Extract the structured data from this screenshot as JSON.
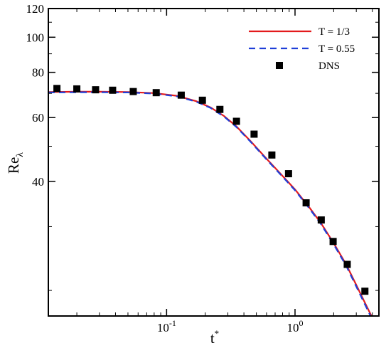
{
  "chart_data": {
    "type": "line",
    "title": "",
    "xlabel": "t",
    "xlabel_superscript": "*",
    "ylabel": "Re",
    "ylabel_subscript": "λ",
    "xscale": "log",
    "yscale": "log",
    "xlim": [
      0.012,
      4.5
    ],
    "ylim": [
      17,
      120
    ],
    "grid": false,
    "legend_position": "top-right",
    "x_ticks": [
      {
        "value": 0.1,
        "base": "10",
        "exp": "-1"
      },
      {
        "value": 1.0,
        "base": "10",
        "exp": "0"
      }
    ],
    "y_ticks": [
      {
        "value": 40,
        "label": "40"
      },
      {
        "value": 60,
        "label": "60"
      },
      {
        "value": 80,
        "label": "80"
      },
      {
        "value": 100,
        "label": "100"
      },
      {
        "value": 120,
        "label": "120"
      }
    ],
    "series": [
      {
        "name": "T = 1/3",
        "style": "solid",
        "color": "#e31a1c",
        "x": [
          0.012,
          0.02,
          0.03,
          0.05,
          0.08,
          0.12,
          0.17,
          0.22,
          0.28,
          0.35,
          0.45,
          0.6,
          0.8,
          1.0,
          1.3,
          1.6,
          2.0,
          2.5,
          3.0,
          3.5,
          4.0
        ],
        "y": [
          70.6,
          70.7,
          70.7,
          70.6,
          70.1,
          68.9,
          66.6,
          64.0,
          60.6,
          56.7,
          51.7,
          46.2,
          41.4,
          38.0,
          33.8,
          30.6,
          27.0,
          23.6,
          20.7,
          18.5,
          16.8
        ]
      },
      {
        "name": "T = 0.55",
        "style": "dashed",
        "color": "#1f3fd8",
        "x": [
          0.012,
          0.02,
          0.03,
          0.05,
          0.08,
          0.12,
          0.17,
          0.22,
          0.28,
          0.35,
          0.45,
          0.6,
          0.8,
          1.0,
          1.3,
          1.6,
          2.0,
          2.5,
          3.0,
          3.5,
          4.0
        ],
        "y": [
          70.4,
          70.5,
          70.5,
          70.4,
          69.9,
          68.7,
          66.4,
          63.8,
          60.4,
          56.5,
          51.5,
          46.0,
          41.2,
          37.8,
          33.6,
          30.4,
          26.8,
          23.4,
          20.5,
          18.3,
          16.6
        ]
      },
      {
        "name": "DNS",
        "style": "markers",
        "color": "#000000",
        "x": [
          0.014,
          0.02,
          0.028,
          0.038,
          0.055,
          0.083,
          0.13,
          0.19,
          0.26,
          0.35,
          0.48,
          0.66,
          0.89,
          1.22,
          1.6,
          1.98,
          2.55,
          3.5
        ],
        "y": [
          72.2,
          72.0,
          71.6,
          71.4,
          70.8,
          70.3,
          69.2,
          67.0,
          63.2,
          58.6,
          54.0,
          47.3,
          42.0,
          34.9,
          31.3,
          27.3,
          23.6,
          19.9
        ]
      }
    ]
  }
}
